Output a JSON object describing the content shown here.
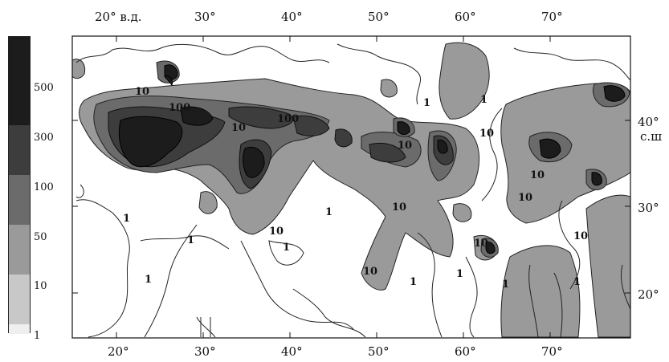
{
  "legend": {
    "ticks": [
      "500",
      "300",
      "100",
      "50",
      "10",
      "1"
    ],
    "bands": [
      {
        "from": 500,
        "color": "#1c1c1c"
      },
      {
        "from": 300,
        "color": "#3d3d3d"
      },
      {
        "from": 100,
        "color": "#5f5f5f"
      },
      {
        "from": 50,
        "color": "#8c8c8c"
      },
      {
        "from": 10,
        "color": "#bdbdbd"
      },
      {
        "from": 1,
        "color": "#ececec"
      }
    ]
  },
  "axes": {
    "top_labels": [
      "20° в.д.",
      "30°",
      "40°",
      "50°",
      "60°",
      "70°"
    ],
    "bottom_labels": [
      "20°",
      "30°",
      "40°",
      "50°",
      "60°",
      "70°"
    ],
    "right_labels": [
      "40°",
      "с.ш",
      "30°",
      "20°"
    ]
  },
  "contour_labels": [
    "10",
    "100",
    "100",
    "10",
    "10",
    "10",
    "10",
    "10",
    "10",
    "10",
    "1",
    "1",
    "1",
    "1",
    "1",
    "1",
    "1",
    "1",
    "1",
    "1",
    "10",
    "10",
    "1",
    "10"
  ]
}
